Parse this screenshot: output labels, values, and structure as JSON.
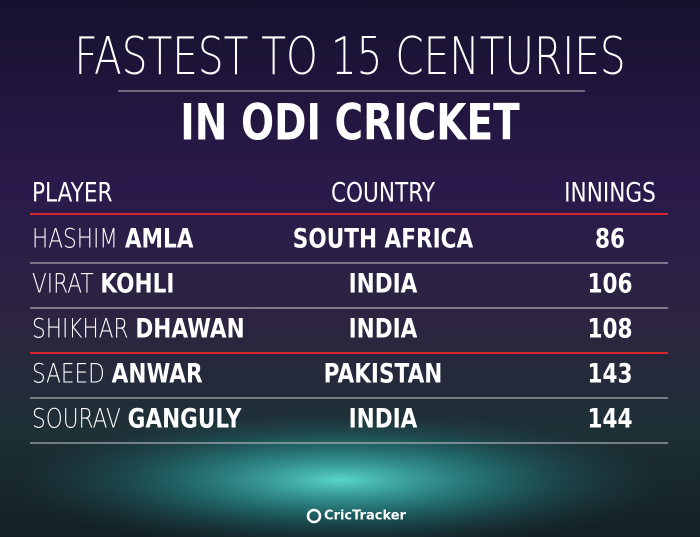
{
  "header": {
    "title_line1": "FASTEST TO 15 CENTURIES",
    "title_line2": "IN ODI CRICKET"
  },
  "table": {
    "columns": [
      "PLAYER",
      "COUNTRY",
      "INNINGS"
    ],
    "rows": [
      {
        "first": "HASHIM",
        "last": "AMLA",
        "country": "SOUTH AFRICA",
        "innings": 86
      },
      {
        "first": "VIRAT",
        "last": "KOHLI",
        "country": "INDIA",
        "innings": 106
      },
      {
        "first": "SHIKHAR",
        "last": "DHAWAN",
        "country": "INDIA",
        "innings": 108
      },
      {
        "first": "SAEED",
        "last": "ANWAR",
        "country": "PAKISTAN",
        "innings": 143
      },
      {
        "first": "SOURAV",
        "last": "GANGULY",
        "country": "INDIA",
        "innings": 144
      }
    ]
  },
  "footer": {
    "brand": "CricTracker"
  }
}
